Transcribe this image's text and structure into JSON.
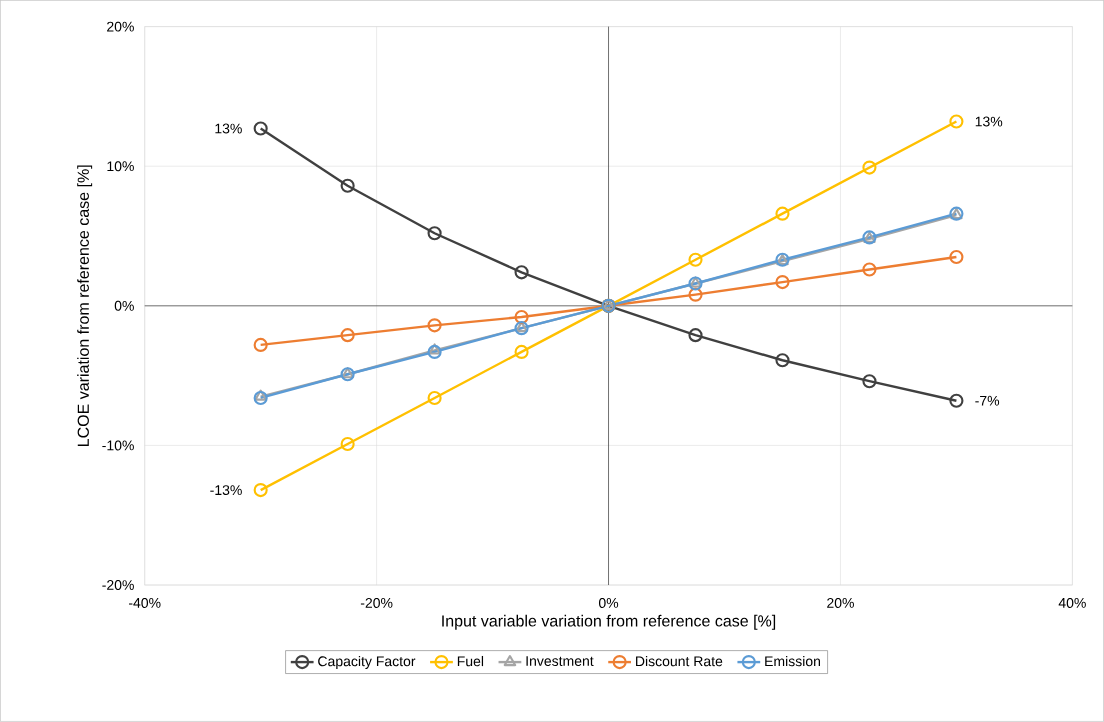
{
  "chart_data": {
    "type": "line",
    "xlabel": "Input variable variation from reference case [%]",
    "ylabel": "LCOE variation from reference case [%]",
    "x": [
      -30,
      -22.5,
      -15,
      -7.5,
      0,
      7.5,
      15,
      22.5,
      30
    ],
    "series": [
      {
        "name": "Capacity Factor",
        "color": "#404040",
        "values": [
          12.7,
          8.6,
          5.2,
          2.4,
          0,
          -2.1,
          -3.9,
          -5.4,
          -6.8
        ],
        "value_labels": [
          "13%",
          null,
          null,
          null,
          null,
          null,
          null,
          null,
          "-7%"
        ]
      },
      {
        "name": "Fuel",
        "color": "#ffc000",
        "values": [
          -13.2,
          -9.9,
          -6.6,
          -3.3,
          0,
          3.3,
          6.6,
          9.9,
          13.2
        ],
        "value_labels": [
          "-13%",
          null,
          null,
          null,
          null,
          null,
          null,
          null,
          "13%"
        ]
      },
      {
        "name": "Investment",
        "color": "#a5a5a5",
        "marker": "triangle",
        "values": [
          -6.5,
          -4.9,
          -3.2,
          -1.6,
          0,
          1.6,
          3.2,
          4.8,
          6.5
        ]
      },
      {
        "name": "Discount Rate",
        "color": "#ed7d31",
        "values": [
          -2.8,
          -2.1,
          -1.4,
          -0.8,
          0,
          0.8,
          1.7,
          2.6,
          3.5
        ]
      },
      {
        "name": "Emission",
        "color": "#5b9bd5",
        "values": [
          -6.6,
          -4.9,
          -3.3,
          -1.6,
          0,
          1.6,
          3.3,
          4.9,
          6.6
        ]
      }
    ],
    "xlim": [
      -40,
      40
    ],
    "ylim": [
      -20,
      20
    ],
    "xticks": [
      {
        "value": -40,
        "label": "-40%"
      },
      {
        "value": -20,
        "label": "-20%"
      },
      {
        "value": 0,
        "label": "0%"
      },
      {
        "value": 20,
        "label": "20%"
      },
      {
        "value": 40,
        "label": "40%"
      }
    ],
    "yticks": [
      {
        "value": -20,
        "label": "-20%"
      },
      {
        "value": -10,
        "label": "-10%"
      },
      {
        "value": 0,
        "label": "0%"
      },
      {
        "value": 10,
        "label": "10%"
      },
      {
        "value": 20,
        "label": "20%"
      }
    ],
    "grid": true,
    "legend": "bottom",
    "marker": "circle",
    "line_style": "solid"
  }
}
